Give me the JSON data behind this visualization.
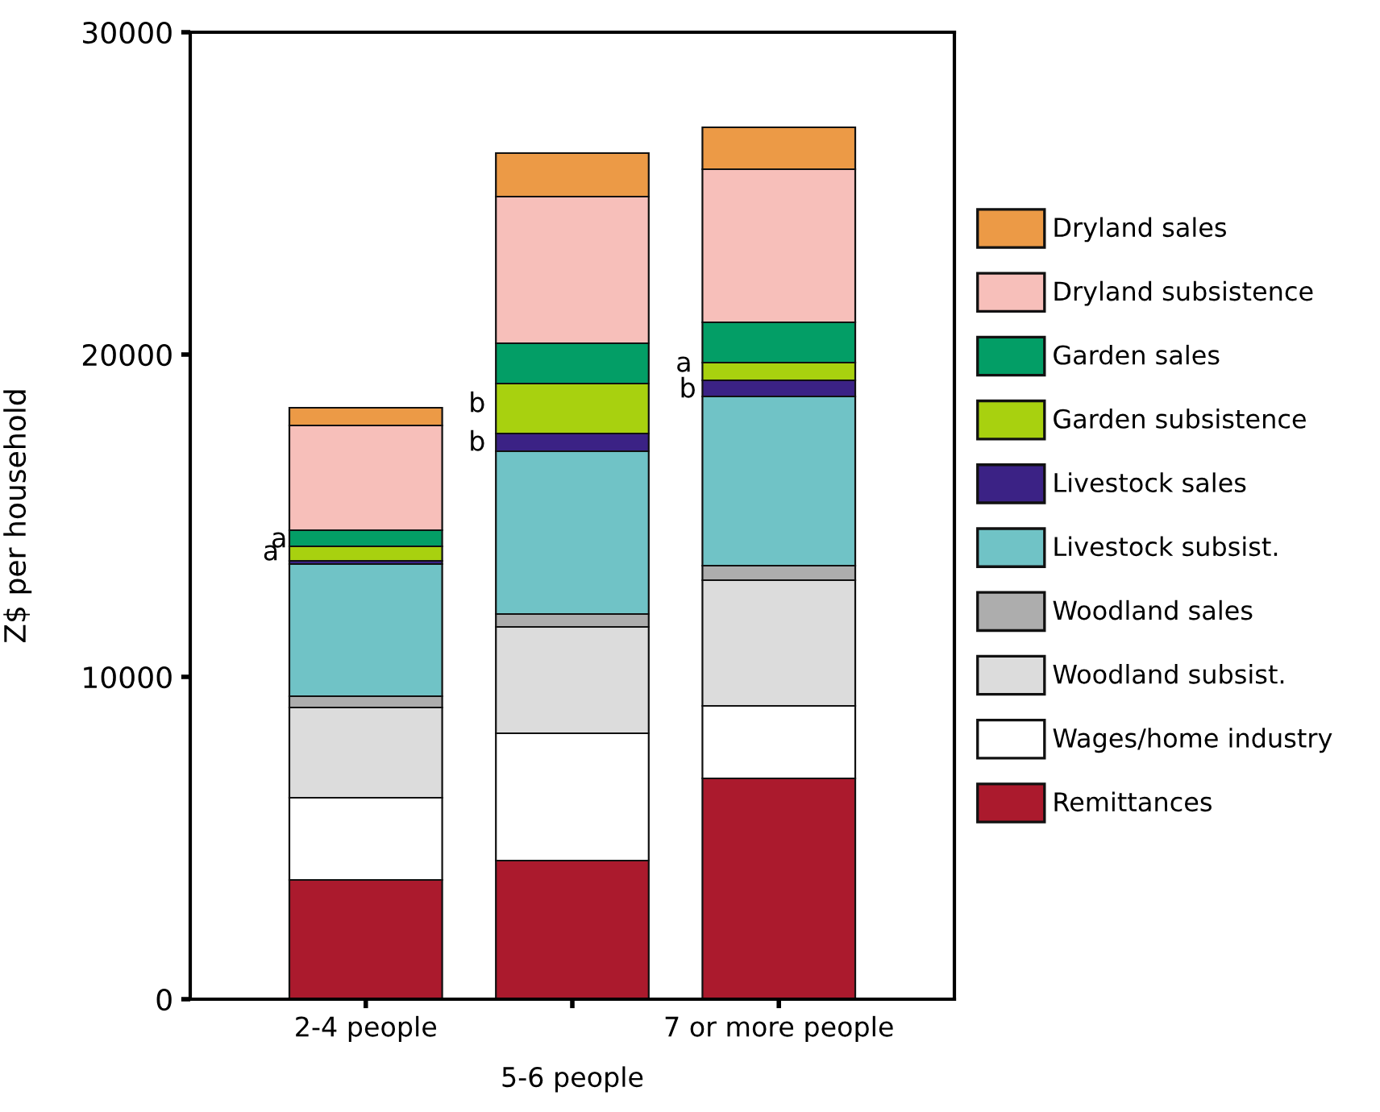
{
  "chart_data": {
    "type": "bar",
    "stacked": true,
    "ylabel": "Z$ per household",
    "categories": [
      "2-4 people",
      "5-6 people",
      "7 or more people"
    ],
    "ylim": [
      0,
      30000
    ],
    "yticks": [
      0,
      10000,
      20000,
      30000
    ],
    "grid": false,
    "legend": "right",
    "series": [
      {
        "name": "Remittances",
        "color": "#ab1a2d",
        "values": [
          3700,
          4300,
          6850
        ]
      },
      {
        "name": "Wages/home industry",
        "color": "#ffffff",
        "values": [
          2550,
          3950,
          2250
        ]
      },
      {
        "name": "Woodland subsist.",
        "color": "#dcdcdc",
        "values": [
          2800,
          3300,
          3900
        ]
      },
      {
        "name": "Woodland sales",
        "color": "#adadad",
        "values": [
          350,
          400,
          450
        ]
      },
      {
        "name": "Livestock subsist.",
        "color": "#70c3c6",
        "values": [
          4100,
          5050,
          5250
        ]
      },
      {
        "name": "Livestock sales",
        "color": "#3b2285",
        "values": [
          100,
          550,
          500
        ]
      },
      {
        "name": "Garden subsistence",
        "color": "#a8d10f",
        "values": [
          450,
          1550,
          550
        ]
      },
      {
        "name": "Garden sales",
        "color": "#039e66",
        "values": [
          500,
          1250,
          1250
        ]
      },
      {
        "name": "Dryland subsistence",
        "color": "#f7bfba",
        "values": [
          3250,
          4550,
          4750
        ]
      },
      {
        "name": "Dryland sales",
        "color": "#ec9a46",
        "values": [
          550,
          1350,
          1300
        ]
      }
    ],
    "annotations": [
      "a",
      "a",
      "b",
      "b",
      "a",
      "b"
    ]
  }
}
